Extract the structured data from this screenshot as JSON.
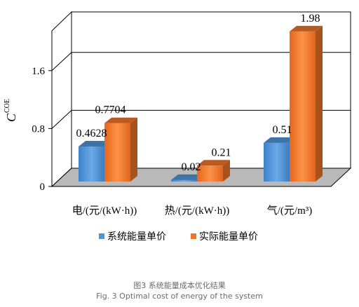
{
  "chart_data": {
    "type": "bar",
    "categories": [
      "电/(元/(kW·h))",
      "热/(元/(kW·h))",
      "气/(元/m³)"
    ],
    "series": [
      {
        "name": "系统能量单价",
        "values": [
          0.4628,
          0.02,
          0.51
        ],
        "labels": [
          "0.4628",
          "0.02",
          "0.51"
        ],
        "color": "#4f93d8"
      },
      {
        "name": "实际能量单价",
        "values": [
          0.7704,
          0.21,
          1.98
        ],
        "labels": [
          "0.7704",
          "0.21",
          "1.98"
        ],
        "color": "#ee7429"
      }
    ],
    "ylabel": "C",
    "ylabel_superscript": "COE",
    "yticks": [
      "0",
      "0.8",
      "1.6"
    ],
    "ylim": [
      0,
      2.15
    ],
    "grid": true,
    "legend_position": "bottom",
    "style": "3d"
  },
  "caption": {
    "chinese": "图3 系统能量成本优化结果",
    "english": "Fig. 3 Optimal cost of energy of the system"
  }
}
